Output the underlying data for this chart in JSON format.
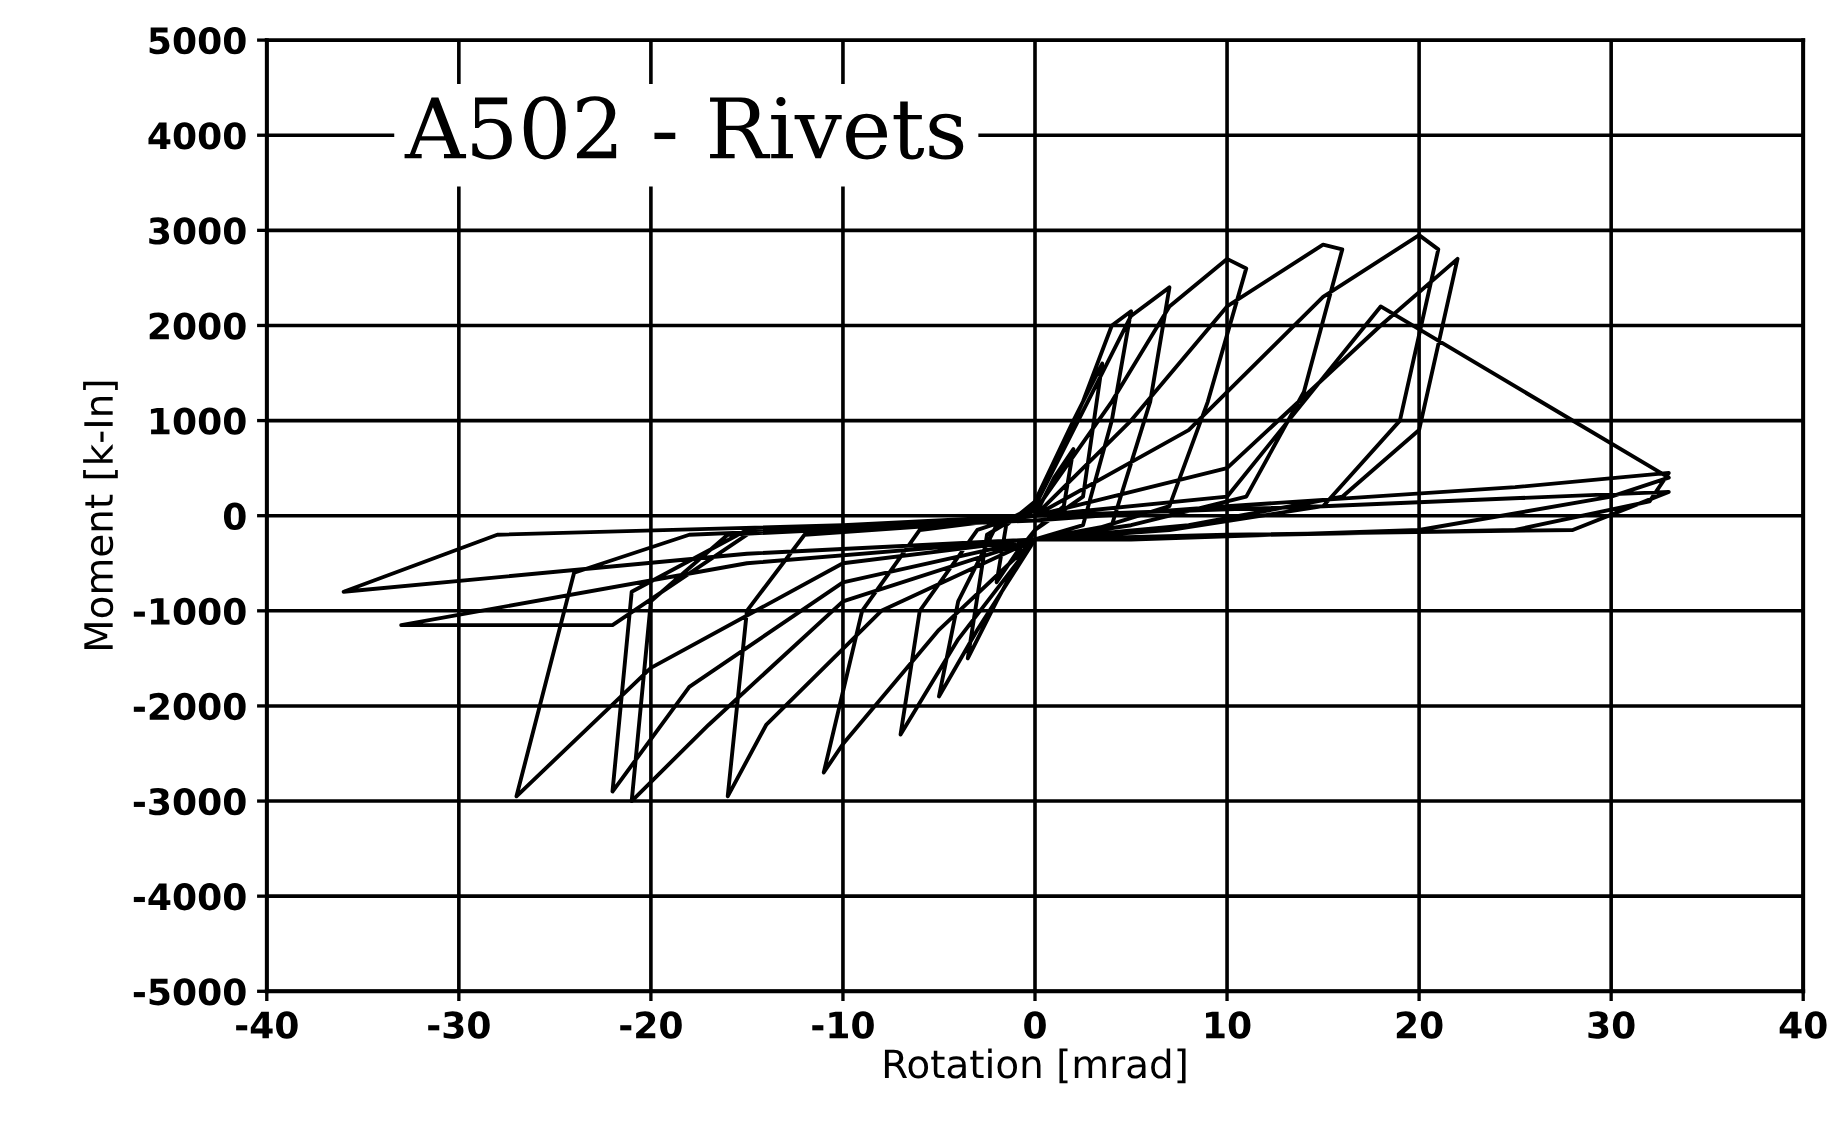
{
  "chart_data": {
    "type": "line",
    "title": "A502 - Rivets",
    "xlabel": "Rotation [mrad]",
    "ylabel": "Moment [k-In]",
    "xlim": [
      -40,
      40
    ],
    "xticks": [
      -40,
      -30,
      -20,
      -10,
      0,
      10,
      20,
      30,
      40
    ],
    "ylim": [
      -5000,
      5000
    ],
    "yticks": [
      -5000,
      -4000,
      -3000,
      -2000,
      -1000,
      0,
      1000,
      2000,
      3000,
      4000,
      5000
    ],
    "grid": true,
    "legend": false,
    "marker": "none",
    "line_style": "solid",
    "series": [
      {
        "color": "#000000",
        "x": [
          0,
          1,
          2,
          1.5,
          0,
          -1,
          -2,
          -1.5,
          0,
          2,
          3.5,
          2.5,
          0,
          -2,
          -3.5,
          -2.5,
          0,
          2.5,
          4,
          5,
          4,
          2.5,
          0,
          -3,
          -5,
          -4,
          -2,
          0,
          3,
          5,
          7,
          6,
          4,
          0,
          -4,
          -7,
          -6,
          -3,
          0,
          4,
          7,
          10,
          11,
          9,
          7,
          3,
          0,
          -5,
          -10,
          -11,
          -9,
          -6,
          0,
          5,
          10,
          15,
          16,
          14,
          11,
          5,
          0,
          -8,
          -14,
          -16,
          -15,
          -12,
          -5,
          0,
          8,
          15,
          20,
          21,
          19,
          15,
          7,
          0,
          -10,
          -17,
          -21,
          -20,
          -16,
          -6,
          0,
          10,
          18,
          22,
          20,
          16,
          8,
          0,
          -10,
          -18,
          -22,
          -21,
          -15,
          -5,
          0,
          10,
          18,
          33,
          30,
          20,
          5,
          0,
          -10,
          -20,
          -27,
          -24,
          -18,
          0,
          10,
          25,
          33,
          32,
          25,
          0,
          -15,
          -36,
          -28,
          -10,
          0,
          15,
          33,
          28,
          10,
          0,
          -15,
          -33,
          -22,
          -15
        ],
        "values": [
          0,
          400,
          700,
          100,
          -150,
          -400,
          -700,
          -100,
          150,
          1000,
          1600,
          200,
          -150,
          -900,
          -1500,
          -200,
          100,
          1200,
          2000,
          2150,
          1000,
          -100,
          -250,
          -1200,
          -1900,
          -900,
          -100,
          100,
          1300,
          2100,
          2400,
          1200,
          -100,
          -250,
          -1300,
          -2300,
          -1000,
          -150,
          50,
          1200,
          2200,
          2700,
          2600,
          1200,
          100,
          -150,
          -250,
          -1200,
          -2400,
          -2700,
          -1000,
          -150,
          0,
          1000,
          2200,
          2850,
          2800,
          1300,
          200,
          -100,
          -250,
          -1000,
          -2200,
          -2950,
          -1000,
          -200,
          -100,
          0,
          900,
          2300,
          2950,
          2800,
          1000,
          100,
          -150,
          -250,
          -900,
          -2200,
          -3000,
          -900,
          -200,
          -100,
          0,
          500,
          2000,
          2700,
          900,
          200,
          -100,
          -250,
          -700,
          -1800,
          -2900,
          -800,
          -150,
          -100,
          0,
          200,
          2200,
          400,
          200,
          -150,
          -250,
          -250,
          -500,
          -1600,
          -2950,
          -600,
          -200,
          -50,
          100,
          300,
          450,
          150,
          -150,
          -250,
          -400,
          -800,
          -200,
          -100,
          0,
          100,
          250,
          -150,
          -200,
          -250,
          -500,
          -1150,
          -1150,
          -200
        ]
      }
    ]
  }
}
